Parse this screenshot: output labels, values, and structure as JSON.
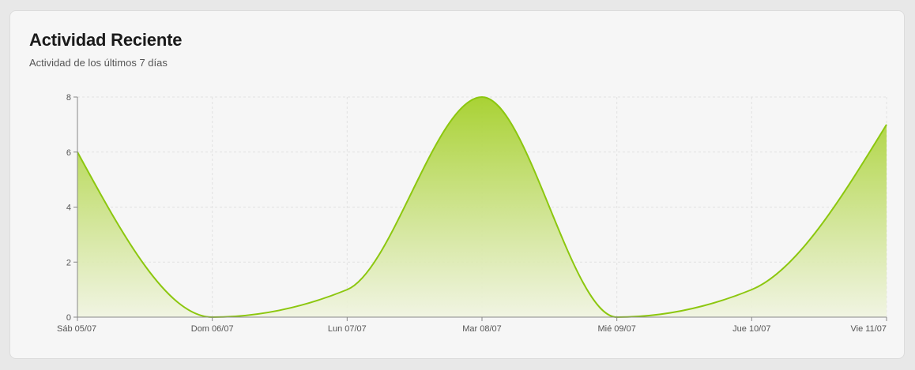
{
  "card": {
    "title": "Actividad Reciente",
    "subtitle": "Actividad de los últimos 7 días"
  },
  "colors": {
    "line": "#8cc70f",
    "fill_top": "#a5d02a",
    "fill_bottom": "#f0f4e0",
    "grid": "#e2e2e2",
    "axis": "#888888"
  },
  "chart_data": {
    "type": "area",
    "categories": [
      "Sáb 05/07",
      "Dom 06/07",
      "Lun 07/07",
      "Mar 08/07",
      "Mié 09/07",
      "Jue 10/07",
      "Vie 11/07"
    ],
    "values": [
      6,
      0,
      1,
      8,
      0,
      1,
      7
    ],
    "ylim": [
      0,
      8
    ],
    "yticks": [
      0,
      2,
      4,
      6,
      8
    ],
    "grid": true,
    "curve": "smooth"
  }
}
